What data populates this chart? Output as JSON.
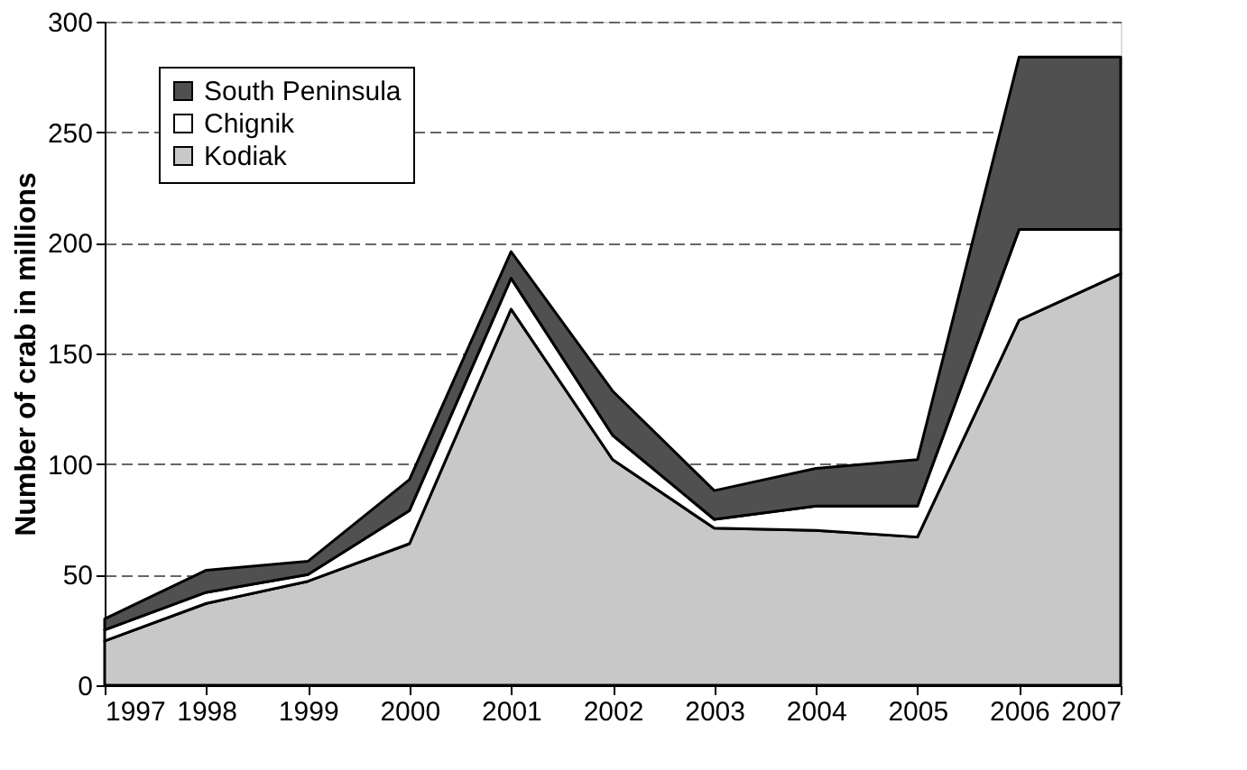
{
  "chart_data": {
    "type": "area",
    "stacked": true,
    "ylabel": "Number of crab in millions",
    "x": [
      1997,
      1998,
      1999,
      2000,
      2001,
      2002,
      2003,
      2004,
      2005,
      2006,
      2007
    ],
    "xlim": [
      1997,
      2007
    ],
    "xticks": [
      1997,
      1998,
      1999,
      2000,
      2001,
      2002,
      2003,
      2004,
      2005,
      2006,
      2007
    ],
    "ylim": [
      0,
      300
    ],
    "yticks": [
      0,
      50,
      100,
      150,
      200,
      250,
      300
    ],
    "grid": "y",
    "legend": "top left",
    "series": [
      {
        "name": "Kodiak",
        "color": "#c8c8c8",
        "values": [
          20,
          37,
          47,
          64,
          170,
          102,
          71,
          70,
          67,
          165,
          186
        ]
      },
      {
        "name": "Chignik",
        "color": "#ffffff",
        "values": [
          5,
          5,
          3,
          15,
          14,
          11,
          4,
          11,
          14,
          41,
          20
        ]
      },
      {
        "name": "South Peninsula",
        "color": "#505050",
        "values": [
          5,
          10,
          6,
          14,
          12,
          20,
          13,
          17,
          21,
          78,
          78
        ]
      }
    ]
  }
}
